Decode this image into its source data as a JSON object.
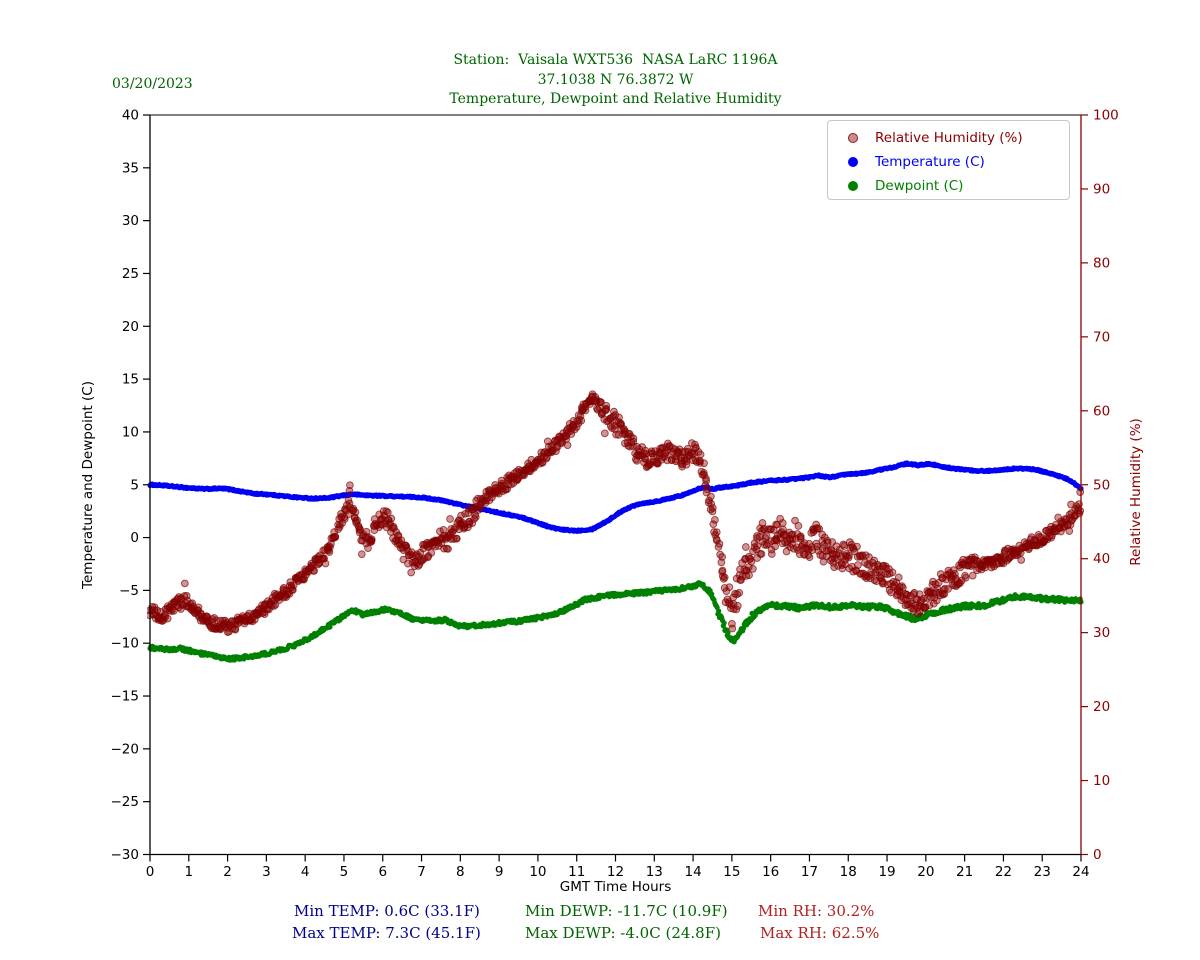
{
  "date_label": "03/20/2023",
  "title": {
    "line1": "Station:  Vaisala WXT536  NASA LaRC 1196A",
    "line2": "37.1038 N 76.3872 W",
    "line3": "Temperature, Dewpoint and Relative Humidity"
  },
  "colors": {
    "title_green": "#006400",
    "temp_blue": "#0000f2",
    "dew_green": "#008000",
    "rh_darkred": "#8b0000",
    "stats_temp": "#00008b",
    "stats_dewp": "#006400",
    "stats_rh": "#b22222",
    "axis_black": "#000000"
  },
  "stats": {
    "min_temp": "Min TEMP: 0.6C (33.1F)",
    "max_temp": "Max TEMP: 7.3C (45.1F)",
    "min_dewp": "Min DEWP: -11.7C (10.9F)",
    "max_dewp": "Max DEWP: -4.0C (24.8F)",
    "min_rh": "Min RH: 30.2%",
    "max_rh": "Max RH: 62.5%"
  },
  "chart_data": {
    "type": "scatter",
    "title": "Temperature, Dewpoint and Relative Humidity",
    "xlabel": "GMT Time Hours",
    "ylabel_left": "Temperature and Dewpoint (C)",
    "ylabel_right": "Relative Humidity (%)",
    "x_axis": {
      "min": 0,
      "max": 24,
      "tick_step": 1
    },
    "y_left_axis": {
      "min": -30,
      "max": 40,
      "tick_step": 5
    },
    "y_right_axis": {
      "min": 0,
      "max": 100,
      "tick_step": 10
    },
    "grid": false,
    "legend": {
      "position": "upper right",
      "entries": [
        {
          "label": "Relative Humidity (%)",
          "text_color": "#8b0000",
          "marker_fill": "rgba(139,0,0,0.45)",
          "marker_edge": "rgba(125,0,0,0.8)",
          "marker_size": 8
        },
        {
          "label": "Temperature (C)",
          "text_color": "#0000f2",
          "marker_fill": "#0000f2",
          "marker_edge": "none",
          "marker_size": 10
        },
        {
          "label": "Dewpoint (C)",
          "text_color": "#008000",
          "marker_fill": "#008000",
          "marker_edge": "none",
          "marker_size": 10
        }
      ]
    },
    "series": [
      {
        "name": "Relative Humidity (%)",
        "axis": "right",
        "z": 3,
        "marker_r": 3.4,
        "fill": "rgba(139,0,0,0.42)",
        "edge": "rgba(125,0,0,0.7)",
        "edge_w": 0.9,
        "step": 0.018,
        "noise": 0.8,
        "x_jitter": 1.2,
        "outlier_chance": 0.03,
        "outlier_mult": 2.8,
        "noise_windows": [
          [
            5.4,
            8.6,
            1.7
          ],
          [
            11.7,
            14.3,
            1.6
          ],
          [
            14.85,
            18.3,
            2.6
          ],
          [
            18.3,
            21.3,
            2.0
          ]
        ],
        "keypoints": [
          [
            0,
            33
          ],
          [
            0.3,
            32
          ],
          [
            0.6,
            33.5
          ],
          [
            0.9,
            34.5
          ],
          [
            1.2,
            33
          ],
          [
            1.5,
            31.5
          ],
          [
            1.8,
            31
          ],
          [
            2.1,
            30.8
          ],
          [
            2.4,
            31.8
          ],
          [
            2.8,
            32.5
          ],
          [
            3.1,
            34
          ],
          [
            3.5,
            35.5
          ],
          [
            3.8,
            37
          ],
          [
            4.1,
            38.5
          ],
          [
            4.4,
            40
          ],
          [
            4.7,
            42
          ],
          [
            5,
            46
          ],
          [
            5.15,
            48.5
          ],
          [
            5.35,
            44
          ],
          [
            5.6,
            42.5
          ],
          [
            5.85,
            44.5
          ],
          [
            6.05,
            45.5
          ],
          [
            6.3,
            43.5
          ],
          [
            6.6,
            40.8
          ],
          [
            6.9,
            40
          ],
          [
            7.2,
            41.5
          ],
          [
            7.5,
            43
          ],
          [
            7.7,
            42
          ],
          [
            8,
            44.5
          ],
          [
            8.3,
            46
          ],
          [
            8.7,
            48.5
          ],
          [
            9,
            49.5
          ],
          [
            9.4,
            51
          ],
          [
            9.8,
            52.5
          ],
          [
            10.2,
            54
          ],
          [
            10.6,
            56
          ],
          [
            11,
            58.5
          ],
          [
            11.2,
            60.5
          ],
          [
            11.4,
            62
          ],
          [
            11.6,
            60.5
          ],
          [
            11.8,
            59.5
          ],
          [
            12,
            58.5
          ],
          [
            12.2,
            57
          ],
          [
            12.5,
            54.5
          ],
          [
            12.8,
            53.5
          ],
          [
            13.1,
            54
          ],
          [
            13.4,
            54.5
          ],
          [
            13.7,
            53.5
          ],
          [
            14,
            54.5
          ],
          [
            14.2,
            53
          ],
          [
            14.35,
            50
          ],
          [
            14.5,
            46
          ],
          [
            14.65,
            42
          ],
          [
            14.8,
            37
          ],
          [
            15,
            32.5
          ],
          [
            15.2,
            36.5
          ],
          [
            15.4,
            39
          ],
          [
            15.6,
            41
          ],
          [
            15.8,
            43
          ],
          [
            16,
            42
          ],
          [
            16.2,
            44
          ],
          [
            16.4,
            42.5
          ],
          [
            16.6,
            43.5
          ],
          [
            16.8,
            42
          ],
          [
            17,
            41.5
          ],
          [
            17.2,
            43
          ],
          [
            17.4,
            41
          ],
          [
            17.7,
            40.5
          ],
          [
            18,
            40.5
          ],
          [
            18.3,
            39.5
          ],
          [
            18.6,
            38.5
          ],
          [
            19,
            37.5
          ],
          [
            19.3,
            36
          ],
          [
            19.6,
            34.5
          ],
          [
            19.85,
            33.5
          ],
          [
            20.1,
            35
          ],
          [
            20.4,
            36.5
          ],
          [
            20.7,
            37.5
          ],
          [
            21,
            38.5
          ],
          [
            21.4,
            39
          ],
          [
            21.8,
            39.5
          ],
          [
            22.1,
            40.5
          ],
          [
            22.5,
            41.5
          ],
          [
            22.9,
            42.5
          ],
          [
            23.2,
            43.5
          ],
          [
            23.5,
            44.5
          ],
          [
            23.8,
            45.5
          ],
          [
            24,
            47.5
          ]
        ]
      },
      {
        "name": "Temperature (C)",
        "axis": "left",
        "z": 1,
        "marker_r": 2.6,
        "fill": "#0000f2",
        "edge": "none",
        "edge_w": 0,
        "step": 0.02,
        "noise": 0.07,
        "x_jitter": 0,
        "outlier_chance": 0,
        "outlier_mult": 1,
        "noise_windows": [],
        "keypoints": [
          [
            0,
            5.0
          ],
          [
            0.3,
            4.95
          ],
          [
            0.7,
            4.8
          ],
          [
            1,
            4.7
          ],
          [
            1.4,
            4.6
          ],
          [
            1.8,
            4.65
          ],
          [
            2,
            4.6
          ],
          [
            2.3,
            4.4
          ],
          [
            2.7,
            4.15
          ],
          [
            3,
            4.1
          ],
          [
            3.4,
            3.95
          ],
          [
            3.8,
            3.8
          ],
          [
            4.2,
            3.7
          ],
          [
            4.6,
            3.75
          ],
          [
            5,
            4.0
          ],
          [
            5.2,
            4.1
          ],
          [
            5.6,
            4.0
          ],
          [
            6,
            3.95
          ],
          [
            6.4,
            3.9
          ],
          [
            7,
            3.8
          ],
          [
            7.4,
            3.6
          ],
          [
            7.8,
            3.3
          ],
          [
            8,
            3.1
          ],
          [
            8.4,
            2.8
          ],
          [
            8.8,
            2.5
          ],
          [
            9.2,
            2.2
          ],
          [
            9.6,
            1.9
          ],
          [
            10,
            1.4
          ],
          [
            10.3,
            1.0
          ],
          [
            10.6,
            0.75
          ],
          [
            11,
            0.65
          ],
          [
            11.4,
            0.8
          ],
          [
            11.8,
            1.6
          ],
          [
            12.2,
            2.6
          ],
          [
            12.6,
            3.2
          ],
          [
            13,
            3.4
          ],
          [
            13.4,
            3.7
          ],
          [
            13.8,
            4.1
          ],
          [
            14.1,
            4.6
          ],
          [
            14.3,
            4.8
          ],
          [
            14.5,
            4.6
          ],
          [
            14.8,
            4.8
          ],
          [
            15.1,
            4.9
          ],
          [
            15.5,
            5.2
          ],
          [
            16,
            5.4
          ],
          [
            16.5,
            5.5
          ],
          [
            17,
            5.7
          ],
          [
            17.2,
            5.9
          ],
          [
            17.5,
            5.7
          ],
          [
            18,
            6.0
          ],
          [
            18.4,
            6.1
          ],
          [
            18.8,
            6.4
          ],
          [
            19.2,
            6.7
          ],
          [
            19.5,
            7.0
          ],
          [
            19.8,
            6.85
          ],
          [
            20.1,
            7.0
          ],
          [
            20.4,
            6.7
          ],
          [
            20.8,
            6.5
          ],
          [
            21.2,
            6.35
          ],
          [
            21.6,
            6.3
          ],
          [
            22,
            6.45
          ],
          [
            22.4,
            6.55
          ],
          [
            22.8,
            6.45
          ],
          [
            23.2,
            6.1
          ],
          [
            23.6,
            5.6
          ],
          [
            23.8,
            5.2
          ],
          [
            24,
            4.6
          ]
        ]
      },
      {
        "name": "Dewpoint (C)",
        "axis": "left",
        "z": 2,
        "marker_r": 2.6,
        "fill": "#008000",
        "edge": "none",
        "edge_w": 0,
        "step": 0.02,
        "noise": 0.17,
        "x_jitter": 0,
        "outlier_chance": 0,
        "outlier_mult": 1,
        "noise_windows": [
          [
            14.55,
            15.6,
            1.8
          ],
          [
            16,
            24,
            1.3
          ]
        ],
        "keypoints": [
          [
            0,
            -10.4
          ],
          [
            0.4,
            -10.6
          ],
          [
            0.8,
            -10.5
          ],
          [
            1.2,
            -10.9
          ],
          [
            1.6,
            -11.2
          ],
          [
            2,
            -11.5
          ],
          [
            2.3,
            -11.4
          ],
          [
            2.7,
            -11.2
          ],
          [
            3,
            -11.0
          ],
          [
            3.4,
            -10.6
          ],
          [
            3.8,
            -10.1
          ],
          [
            4.2,
            -9.3
          ],
          [
            4.6,
            -8.4
          ],
          [
            5,
            -7.4
          ],
          [
            5.2,
            -6.8
          ],
          [
            5.5,
            -7.3
          ],
          [
            5.8,
            -7.0
          ],
          [
            6.1,
            -6.8
          ],
          [
            6.5,
            -7.2
          ],
          [
            6.8,
            -7.8
          ],
          [
            7.2,
            -7.9
          ],
          [
            7.6,
            -7.8
          ],
          [
            8,
            -8.4
          ],
          [
            8.5,
            -8.3
          ],
          [
            9,
            -8.1
          ],
          [
            9.5,
            -7.9
          ],
          [
            10,
            -7.6
          ],
          [
            10.4,
            -7.3
          ],
          [
            10.8,
            -6.7
          ],
          [
            11.2,
            -5.9
          ],
          [
            11.6,
            -5.6
          ],
          [
            12,
            -5.4
          ],
          [
            12.4,
            -5.3
          ],
          [
            12.8,
            -5.2
          ],
          [
            13.2,
            -5.0
          ],
          [
            13.6,
            -4.9
          ],
          [
            14,
            -4.6
          ],
          [
            14.2,
            -4.3
          ],
          [
            14.45,
            -5.2
          ],
          [
            14.7,
            -7.5
          ],
          [
            14.9,
            -9.2
          ],
          [
            15.05,
            -9.9
          ],
          [
            15.2,
            -9.0
          ],
          [
            15.45,
            -7.7
          ],
          [
            15.7,
            -6.9
          ],
          [
            16,
            -6.4
          ],
          [
            16.4,
            -6.5
          ],
          [
            16.8,
            -6.7
          ],
          [
            17.2,
            -6.4
          ],
          [
            17.6,
            -6.6
          ],
          [
            18,
            -6.4
          ],
          [
            18.4,
            -6.6
          ],
          [
            18.8,
            -6.5
          ],
          [
            19.1,
            -6.9
          ],
          [
            19.4,
            -7.3
          ],
          [
            19.7,
            -7.7
          ],
          [
            20,
            -7.4
          ],
          [
            20.3,
            -7.0
          ],
          [
            20.7,
            -6.7
          ],
          [
            21,
            -6.5
          ],
          [
            21.5,
            -6.4
          ],
          [
            22,
            -5.9
          ],
          [
            22.3,
            -5.6
          ],
          [
            22.7,
            -5.6
          ],
          [
            23,
            -5.8
          ],
          [
            23.5,
            -5.9
          ],
          [
            24,
            -6.0
          ]
        ]
      }
    ]
  }
}
